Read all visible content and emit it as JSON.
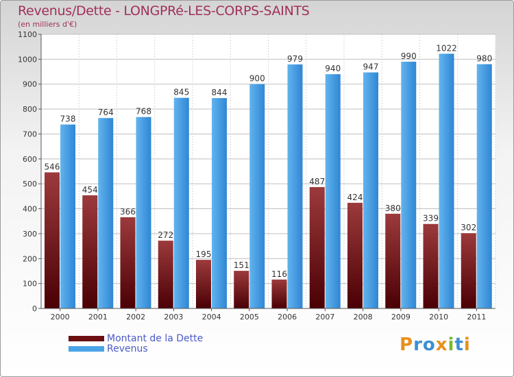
{
  "header": {
    "title": "Revenus/Dette - LONGPRé-LES-CORPS-SAINTS",
    "subtitle": "(en milliers d'€)"
  },
  "legend": {
    "items": [
      {
        "label": "Montant de la Dette",
        "color": "#6b0f12"
      },
      {
        "label": "Revenus",
        "color": "#4aa3e6"
      }
    ]
  },
  "logo": {
    "text": "Proxiti"
  },
  "colors": {
    "title": "#a0305a",
    "dette_top": "#9c3a3c",
    "dette_bottom": "#4a0004",
    "revenus_top": "#62b4ee",
    "revenus_bottom": "#2f86d4"
  },
  "chart_data": {
    "type": "bar",
    "title": "Revenus/Dette - LONGPRé-LES-CORPS-SAINTS",
    "subtitle": "(en milliers d'€)",
    "categories": [
      "2000",
      "2001",
      "2002",
      "2003",
      "2004",
      "2005",
      "2006",
      "2007",
      "2008",
      "2009",
      "2010",
      "2011"
    ],
    "series": [
      {
        "name": "Montant de la Dette",
        "values": [
          546,
          454,
          366,
          272,
          195,
          151,
          116,
          487,
          424,
          380,
          339,
          302
        ]
      },
      {
        "name": "Revenus",
        "values": [
          738,
          764,
          768,
          845,
          844,
          900,
          979,
          940,
          947,
          990,
          1022,
          980
        ]
      }
    ],
    "ylim": [
      0,
      1100
    ],
    "yticks": [
      0,
      100,
      200,
      300,
      400,
      500,
      600,
      700,
      800,
      900,
      1000,
      1100
    ],
    "grid": true,
    "legend_position": "bottom-left"
  }
}
